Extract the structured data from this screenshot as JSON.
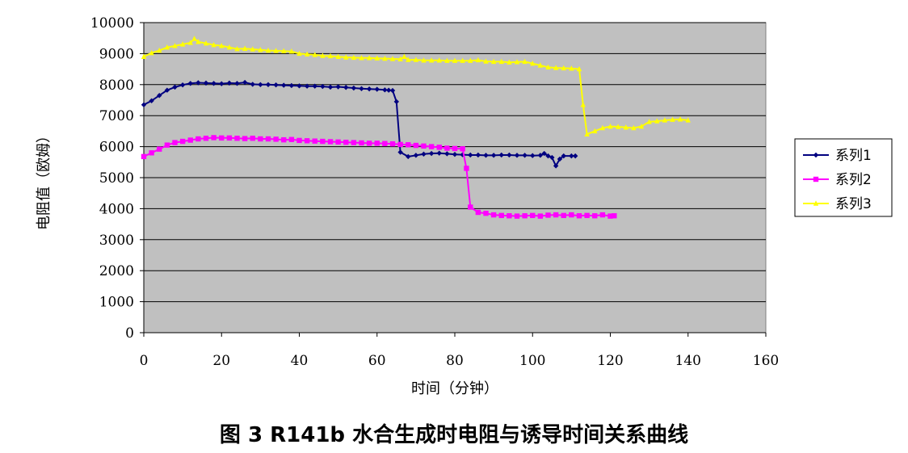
{
  "caption": "图 3  R141b 水合生成时电阻与诱导时间关系曲线",
  "chart_data": {
    "type": "line",
    "xlabel": "时间（分钟）",
    "ylabel": "电阻值（欧姆）",
    "xlim": [
      0,
      160
    ],
    "ylim": [
      0,
      10000
    ],
    "xticks": [
      0,
      20,
      40,
      60,
      80,
      100,
      120,
      140,
      160
    ],
    "yticks": [
      0,
      1000,
      2000,
      3000,
      4000,
      5000,
      6000,
      7000,
      8000,
      9000,
      10000
    ],
    "grid": true,
    "legend_position": "right",
    "plot_background": "#c0c0c0",
    "series": [
      {
        "name": "系列1",
        "color": "#000080",
        "marker": "diamond",
        "x": [
          0,
          2,
          4,
          6,
          8,
          10,
          12,
          14,
          16,
          18,
          20,
          22,
          24,
          26,
          28,
          30,
          32,
          34,
          36,
          38,
          40,
          42,
          44,
          46,
          48,
          50,
          52,
          54,
          56,
          58,
          60,
          62,
          63,
          64,
          65,
          66,
          68,
          70,
          72,
          74,
          76,
          78,
          80,
          82,
          84,
          86,
          88,
          90,
          92,
          94,
          96,
          98,
          100,
          102,
          103,
          104,
          105,
          106,
          107,
          108,
          110,
          111
        ],
        "y": [
          7350,
          7480,
          7650,
          7820,
          7920,
          7990,
          8040,
          8060,
          8050,
          8040,
          8030,
          8050,
          8040,
          8070,
          8010,
          8000,
          8000,
          7990,
          7980,
          7970,
          7960,
          7950,
          7950,
          7940,
          7920,
          7930,
          7910,
          7890,
          7870,
          7860,
          7850,
          7830,
          7820,
          7810,
          7450,
          5820,
          5680,
          5720,
          5760,
          5780,
          5790,
          5770,
          5750,
          5740,
          5730,
          5730,
          5720,
          5720,
          5730,
          5730,
          5720,
          5720,
          5710,
          5720,
          5780,
          5700,
          5650,
          5380,
          5600,
          5700,
          5700,
          5700
        ]
      },
      {
        "name": "系列2",
        "color": "#ff00ff",
        "marker": "square",
        "x": [
          0,
          2,
          4,
          6,
          8,
          10,
          12,
          14,
          16,
          18,
          20,
          22,
          24,
          26,
          28,
          30,
          32,
          34,
          36,
          38,
          40,
          42,
          44,
          46,
          48,
          50,
          52,
          54,
          56,
          58,
          60,
          62,
          64,
          66,
          68,
          70,
          72,
          74,
          76,
          78,
          80,
          82,
          83,
          84,
          86,
          88,
          90,
          92,
          94,
          96,
          98,
          100,
          102,
          104,
          106,
          108,
          110,
          112,
          114,
          116,
          118,
          120,
          121
        ],
        "y": [
          5680,
          5800,
          5920,
          6050,
          6130,
          6170,
          6210,
          6250,
          6270,
          6290,
          6280,
          6280,
          6270,
          6260,
          6270,
          6250,
          6250,
          6240,
          6220,
          6230,
          6200,
          6190,
          6180,
          6170,
          6160,
          6150,
          6140,
          6130,
          6120,
          6110,
          6110,
          6100,
          6090,
          6070,
          6060,
          6040,
          6020,
          6000,
          5980,
          5950,
          5940,
          5930,
          5300,
          4050,
          3880,
          3850,
          3800,
          3780,
          3770,
          3760,
          3770,
          3780,
          3760,
          3790,
          3800,
          3780,
          3800,
          3770,
          3780,
          3770,
          3800,
          3760,
          3770
        ]
      },
      {
        "name": "系列3",
        "color": "#ffff00",
        "marker": "triangle",
        "x": [
          0,
          2,
          4,
          6,
          8,
          10,
          12,
          13,
          14,
          16,
          18,
          20,
          22,
          24,
          26,
          28,
          30,
          32,
          34,
          36,
          38,
          40,
          42,
          44,
          46,
          48,
          50,
          52,
          54,
          56,
          58,
          60,
          62,
          64,
          66,
          67,
          68,
          70,
          72,
          74,
          76,
          78,
          80,
          82,
          84,
          86,
          88,
          90,
          92,
          94,
          96,
          98,
          100,
          102,
          104,
          106,
          108,
          110,
          112,
          113,
          114,
          116,
          118,
          120,
          122,
          124,
          126,
          128,
          130,
          132,
          134,
          136,
          138,
          140
        ],
        "y": [
          8900,
          9020,
          9100,
          9200,
          9250,
          9300,
          9350,
          9480,
          9380,
          9330,
          9280,
          9250,
          9200,
          9150,
          9160,
          9140,
          9120,
          9100,
          9090,
          9080,
          9070,
          9000,
          8980,
          8960,
          8930,
          8920,
          8900,
          8880,
          8870,
          8860,
          8860,
          8850,
          8840,
          8830,
          8820,
          8900,
          8800,
          8800,
          8780,
          8780,
          8780,
          8770,
          8770,
          8770,
          8770,
          8790,
          8750,
          8740,
          8740,
          8720,
          8730,
          8740,
          8680,
          8620,
          8560,
          8540,
          8530,
          8520,
          8500,
          7350,
          6400,
          6500,
          6600,
          6650,
          6640,
          6620,
          6600,
          6650,
          6800,
          6820,
          6850,
          6870,
          6880,
          6850
        ]
      }
    ]
  }
}
